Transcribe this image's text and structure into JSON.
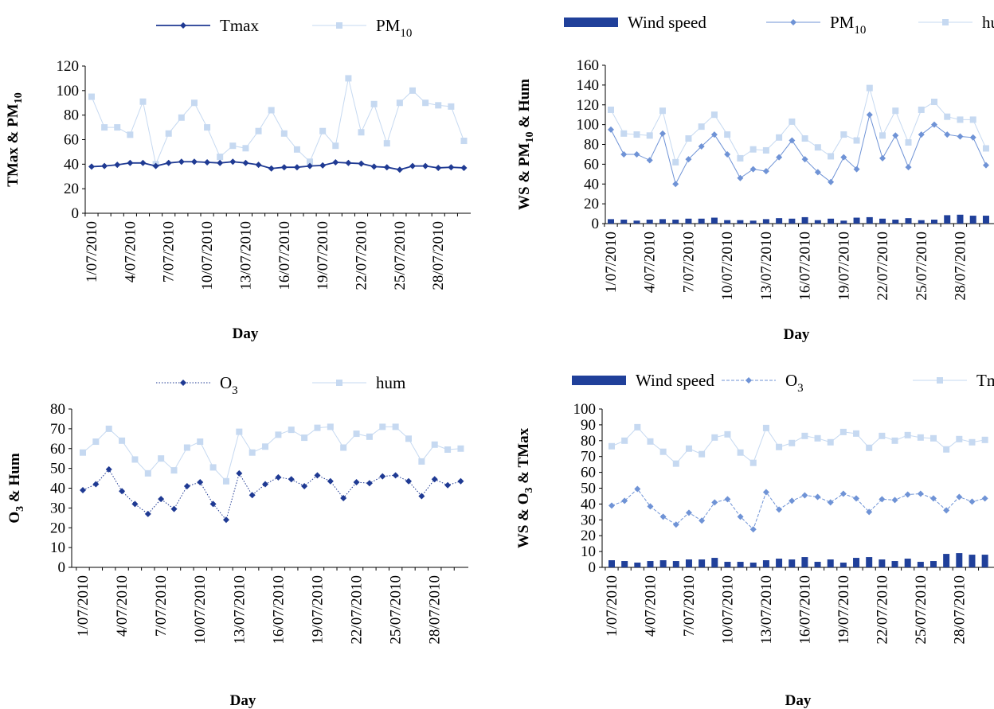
{
  "colors": {
    "dark_blue": "#1f3a93",
    "mid_blue": "#6f93d6",
    "light_blue": "#c6d9f1",
    "bar_blue": "#20409a"
  },
  "chart_data": [
    {
      "id": "tl",
      "type": "line",
      "xlabel": "Day",
      "ylabel": [
        "TMax & PM",
        "10"
      ],
      "ylim": [
        0,
        120
      ],
      "yticks": [
        0,
        20,
        40,
        60,
        80,
        100,
        120
      ],
      "x_tick_labels": [
        "1/07/2010",
        "4/07/2010",
        "7/07/2010",
        "10/07/2010",
        "13/07/2010",
        "16/07/2010",
        "19/07/2010",
        "22/07/2010",
        "25/07/2010",
        "28/07/2010"
      ],
      "legend": [
        {
          "name": "Tmax",
          "sub": "",
          "style": "line-diamond-dark"
        },
        {
          "name": "PM",
          "sub": "10",
          "style": "line-square-light"
        }
      ],
      "series": [
        {
          "name": "Tmax",
          "style": "line-diamond-dark",
          "values": [
            38,
            38.5,
            39.5,
            41,
            41,
            38.5,
            41,
            42,
            42,
            41.5,
            41,
            42,
            41,
            39.5,
            36.5,
            37.5,
            37.5,
            38.5,
            39,
            41.5,
            41,
            40.5,
            38,
            37.5,
            35.5,
            38.5,
            38.5,
            37,
            37.5,
            37
          ]
        },
        {
          "name": "PM10",
          "style": "line-square-light",
          "values": [
            95,
            70,
            70,
            64,
            91,
            40,
            65,
            78,
            90,
            70,
            46,
            55,
            53,
            67,
            84,
            65,
            52,
            42,
            67,
            55,
            110,
            66,
            89,
            57,
            90,
            100,
            90,
            88,
            87,
            59
          ]
        }
      ]
    },
    {
      "id": "tr",
      "type": "bar+line",
      "xlabel": "Day",
      "ylabel": [
        "WS & PM",
        "10",
        " & Hum"
      ],
      "ylim": [
        0,
        160
      ],
      "yticks": [
        0,
        20,
        40,
        60,
        80,
        100,
        120,
        140,
        160
      ],
      "x_tick_labels": [
        "1/07/2010",
        "4/07/2010",
        "7/07/2010",
        "10/07/2010",
        "13/07/2010",
        "16/07/2010",
        "19/07/2010",
        "22/07/2010",
        "25/07/2010",
        "28/07/2010"
      ],
      "legend": [
        {
          "name": "Wind speed",
          "sub": "",
          "style": "bar"
        },
        {
          "name": "PM",
          "sub": "10",
          "style": "line-diamond-mid"
        },
        {
          "name": "hum",
          "sub": "",
          "style": "line-square-light"
        }
      ],
      "series": [
        {
          "name": "Wind speed",
          "style": "bar",
          "values": [
            4.5,
            4,
            3,
            4,
            4.5,
            4,
            5,
            5,
            6,
            3.5,
            3.5,
            3,
            4.5,
            5.5,
            5,
            6.5,
            3.5,
            5,
            3,
            6,
            6.5,
            5,
            4,
            5.5,
            3.5,
            4,
            8.5,
            9,
            8,
            8
          ]
        },
        {
          "name": "PM10",
          "style": "line-diamond-mid",
          "values": [
            95,
            70,
            70,
            64,
            91,
            40,
            65,
            78,
            90,
            70,
            46,
            55,
            53,
            67,
            84,
            65,
            52,
            42,
            67,
            55,
            110,
            66,
            89,
            57,
            90,
            100,
            90,
            88,
            87,
            59
          ]
        },
        {
          "name": "hum",
          "style": "line-square-light",
          "values": [
            115,
            91,
            90,
            89,
            114,
            62,
            86,
            98,
            110,
            90,
            66,
            75,
            74,
            87,
            103,
            86,
            77,
            68,
            90,
            84,
            137,
            89,
            114,
            82,
            115,
            123,
            108,
            105,
            105,
            76
          ]
        }
      ]
    },
    {
      "id": "bl",
      "type": "line",
      "xlabel": "Day",
      "ylabel": [
        "O",
        "3",
        " & Hum"
      ],
      "ylim": [
        0,
        80
      ],
      "yticks": [
        0,
        10,
        20,
        30,
        40,
        50,
        60,
        70,
        80
      ],
      "x_tick_labels": [
        "1/07/2010",
        "4/07/2010",
        "7/07/2010",
        "10/07/2010",
        "13/07/2010",
        "16/07/2010",
        "19/07/2010",
        "22/07/2010",
        "25/07/2010",
        "28/07/2010"
      ],
      "legend": [
        {
          "name": "O",
          "sub": "3",
          "style": "dotted-diamond-dark"
        },
        {
          "name": "hum",
          "sub": "",
          "style": "line-square-light"
        }
      ],
      "series": [
        {
          "name": "O3",
          "style": "dotted-diamond-dark",
          "values": [
            39,
            42,
            49.5,
            38.5,
            32,
            27,
            34.5,
            29.5,
            41,
            43,
            32,
            24,
            47.5,
            36.5,
            42,
            45.5,
            44.5,
            41,
            46.5,
            43.5,
            35,
            43,
            42.5,
            46,
            46.5,
            43.5,
            36,
            44.5,
            41.5,
            43.5
          ]
        },
        {
          "name": "hum",
          "style": "line-square-light",
          "values": [
            58,
            63.5,
            70,
            64,
            54.5,
            47.5,
            55,
            49,
            60.5,
            63.5,
            50.5,
            43.5,
            68.5,
            58,
            61,
            67,
            69.5,
            65.5,
            70.5,
            71,
            60.5,
            67.5,
            66,
            71,
            71,
            65,
            53.5,
            62,
            59.5,
            60
          ]
        }
      ]
    },
    {
      "id": "br",
      "type": "bar+line",
      "xlabel": "Day",
      "ylabel": [
        "WS & O",
        "3",
        " & TMax"
      ],
      "ylim": [
        0,
        100
      ],
      "yticks": [
        0,
        10,
        20,
        30,
        40,
        50,
        60,
        70,
        80,
        90,
        100
      ],
      "x_tick_labels": [
        "1/07/2010",
        "4/07/2010",
        "7/07/2010",
        "10/07/2010",
        "13/07/2010",
        "16/07/2010",
        "19/07/2010",
        "22/07/2010",
        "25/07/2010",
        "28/07/2010"
      ],
      "legend": [
        {
          "name": "Wind speed",
          "sub": "",
          "style": "bar"
        },
        {
          "name": "O",
          "sub": "3",
          "style": "dashed-diamond-mid"
        },
        {
          "name": "Tmax",
          "sub": "",
          "style": "line-square-light"
        }
      ],
      "series": [
        {
          "name": "Wind speed",
          "style": "bar",
          "values": [
            4.5,
            4,
            3,
            4,
            4.5,
            4,
            5,
            5,
            6,
            3.5,
            3.5,
            3,
            4.5,
            5.5,
            5,
            6.5,
            3.5,
            5,
            3,
            6,
            6.5,
            5,
            4,
            5.5,
            3.5,
            4,
            8.5,
            9,
            8,
            8
          ]
        },
        {
          "name": "O3",
          "style": "dashed-diamond-mid",
          "values": [
            39,
            42,
            49.5,
            38.5,
            32,
            27,
            34.5,
            29.5,
            41,
            43,
            32,
            24,
            47.5,
            36.5,
            42,
            45.5,
            44.5,
            41,
            46.5,
            43.5,
            35,
            43,
            42.5,
            46,
            46.5,
            43.5,
            36,
            44.5,
            41.5,
            43.5
          ]
        },
        {
          "name": "Tmax",
          "style": "line-square-light",
          "values": [
            76.5,
            80,
            88.5,
            79.5,
            73,
            65.5,
            75,
            71.5,
            82,
            84,
            72.5,
            66,
            88,
            76,
            78.5,
            83,
            81.5,
            79,
            85.5,
            84.5,
            75.5,
            83,
            80,
            83.5,
            82,
            81.5,
            74.5,
            81,
            79,
            80.5
          ]
        }
      ]
    }
  ]
}
